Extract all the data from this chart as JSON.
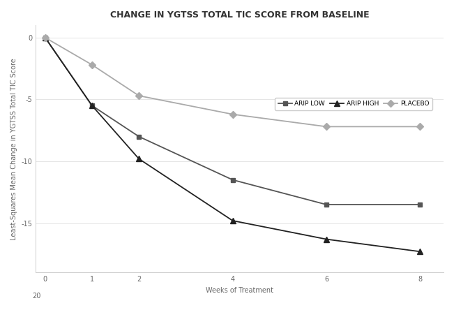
{
  "title": "CHANGE IN YGTSS TOTAL TIC SCORE FROM BASELINE",
  "xlabel": "Weeks of Treatment",
  "ylabel": "Least-Squares Mean Change in YGTSS Total TIC Score",
  "weeks": [
    0,
    1,
    2,
    4,
    6,
    8
  ],
  "arip_low": [
    0,
    -5.5,
    -8.0,
    -11.5,
    -13.5,
    -13.5
  ],
  "arip_high": [
    0,
    -5.5,
    -9.8,
    -14.8,
    -16.3,
    -17.3
  ],
  "placebo": [
    0,
    -2.2,
    -4.7,
    -6.2,
    -7.2,
    -7.2
  ],
  "arip_low_color": "#555555",
  "arip_high_color": "#222222",
  "placebo_color": "#aaaaaa",
  "legend_labels": [
    "ARIP LOW",
    "ARIP HIGH",
    "PLACEBO"
  ],
  "arip_low_marker": "s",
  "arip_high_marker": "^",
  "placebo_marker": "D",
  "ylim_top": 1.0,
  "ylim_bottom": -19.0,
  "xlim_left": -0.2,
  "xlim_right": 8.5,
  "title_fontsize": 9,
  "axis_label_fontsize": 7,
  "tick_fontsize": 7,
  "legend_fontsize": 6.5,
  "plot_bg_color": "#ffffff",
  "fig_bg_color": "#ffffff"
}
